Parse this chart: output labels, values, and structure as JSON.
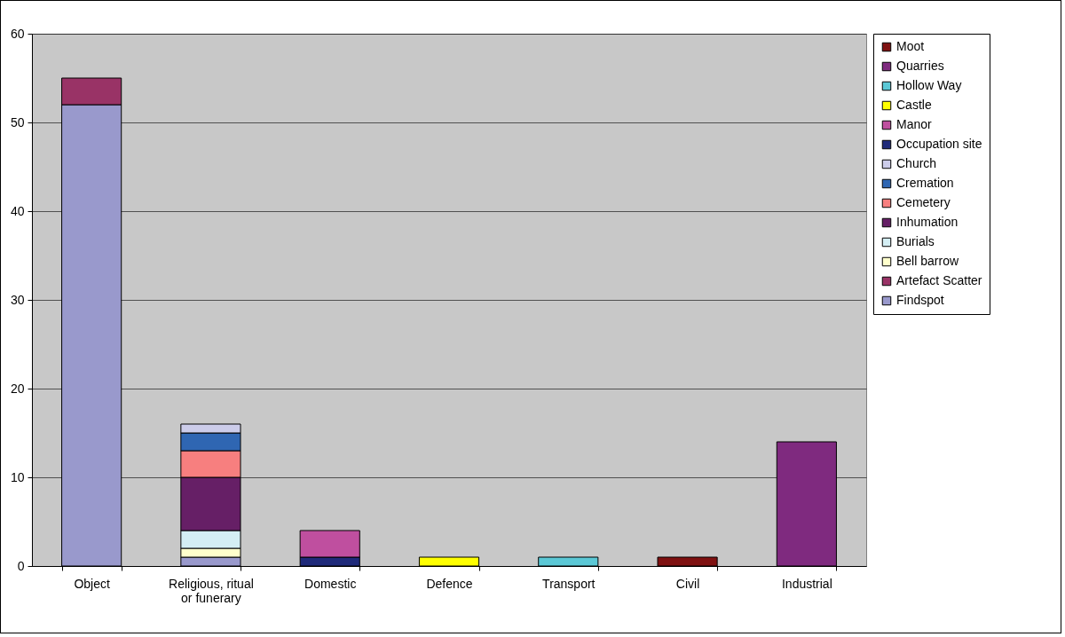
{
  "chart_data": {
    "type": "bar",
    "stacked": true,
    "categories": [
      "Object",
      "Religious, ritual or funerary",
      "Domestic",
      "Defence",
      "Transport",
      "Civil",
      "Industrial"
    ],
    "ylim": [
      0,
      60
    ],
    "yticks": [
      0,
      10,
      20,
      30,
      40,
      50,
      60
    ],
    "grid": "y",
    "legend": "right",
    "series": [
      {
        "name": "Findspot",
        "color": "#9999cc",
        "values": [
          52,
          1,
          null,
          null,
          null,
          null,
          null
        ]
      },
      {
        "name": "Artefact Scatter",
        "color": "#993366",
        "values": [
          3,
          null,
          null,
          null,
          null,
          null,
          null
        ]
      },
      {
        "name": "Bell barrow",
        "color": "#ffffcc",
        "values": [
          null,
          1,
          null,
          null,
          null,
          null,
          null
        ]
      },
      {
        "name": "Burials",
        "color": "#d4eef4",
        "values": [
          null,
          2,
          null,
          null,
          null,
          null,
          null
        ]
      },
      {
        "name": "Inhumation",
        "color": "#661f66",
        "values": [
          null,
          6,
          null,
          null,
          null,
          null,
          null
        ]
      },
      {
        "name": "Cemetery",
        "color": "#f77f7f",
        "values": [
          null,
          3,
          null,
          null,
          null,
          null,
          null
        ]
      },
      {
        "name": "Cremation",
        "color": "#2f66b2",
        "values": [
          null,
          2,
          null,
          null,
          null,
          null,
          null
        ]
      },
      {
        "name": "Church",
        "color": "#ccccea",
        "values": [
          null,
          1,
          null,
          null,
          null,
          null,
          null
        ]
      },
      {
        "name": "Occupation site",
        "color": "#1f2a7a",
        "values": [
          null,
          null,
          1,
          null,
          null,
          null,
          null
        ]
      },
      {
        "name": "Manor",
        "color": "#bf4f9f",
        "values": [
          null,
          null,
          3,
          null,
          null,
          null,
          null
        ]
      },
      {
        "name": "Castle",
        "color": "#ffff00",
        "values": [
          null,
          null,
          null,
          1,
          null,
          null,
          null
        ]
      },
      {
        "name": "Hollow Way",
        "color": "#5bc8d6",
        "values": [
          null,
          null,
          null,
          null,
          1,
          null,
          null
        ]
      },
      {
        "name": "Quarries",
        "color": "#7f2a7f",
        "values": [
          null,
          null,
          null,
          null,
          null,
          null,
          14
        ]
      },
      {
        "name": "Moot",
        "color": "#7f1111",
        "values": [
          null,
          null,
          null,
          null,
          null,
          1,
          null
        ]
      }
    ]
  }
}
